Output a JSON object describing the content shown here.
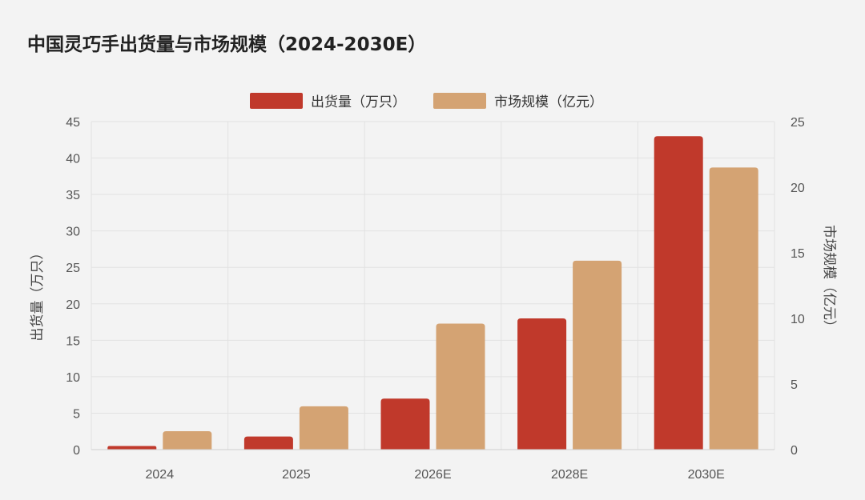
{
  "chart_data": {
    "type": "bar",
    "title": "中国灵巧手出货量与市场规模（2024-2030E）",
    "categories": [
      "2024",
      "2025",
      "2026E",
      "2028E",
      "2030E"
    ],
    "series": [
      {
        "name": "出货量（万只）",
        "axis": "left",
        "color": "#c0392b",
        "values": [
          0.5,
          1.8,
          7,
          18,
          43
        ]
      },
      {
        "name": "市场规模（亿元）",
        "axis": "right",
        "color": "#d4a373",
        "values": [
          1.4,
          3.3,
          9.6,
          14.4,
          21.5
        ]
      }
    ],
    "ylabel": "出货量（万只）",
    "y2label": "市场规模（亿元）",
    "ylim": [
      0,
      45
    ],
    "y2lim": [
      0,
      25
    ],
    "yticks": [
      0,
      5,
      10,
      15,
      20,
      25,
      30,
      35,
      40,
      45
    ],
    "y2ticks": [
      0,
      5,
      10,
      15,
      20,
      25
    ],
    "grid": true,
    "legend_position": "top-center"
  }
}
